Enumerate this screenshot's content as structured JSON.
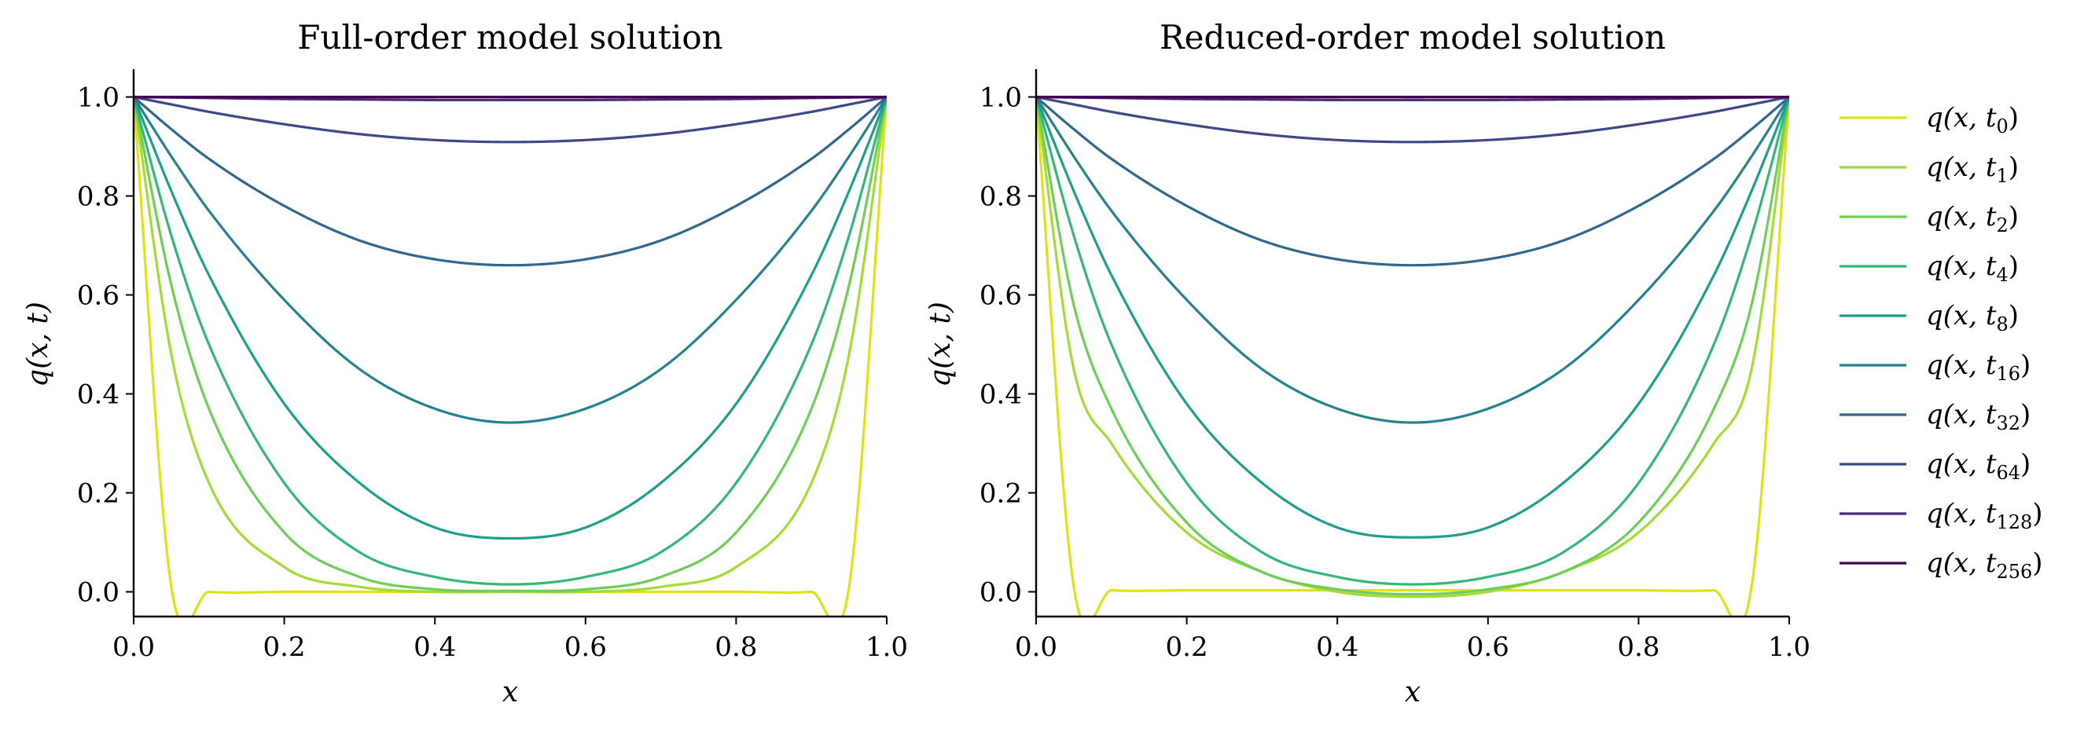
{
  "chart_data": [
    {
      "type": "line",
      "title": "Full-order model solution",
      "xlabel": "x",
      "ylabel": "q(x, t)",
      "xlim": [
        0.0,
        1.0
      ],
      "ylim": [
        -0.05,
        1.05
      ],
      "xticks": [
        "0.0",
        "0.2",
        "0.4",
        "0.6",
        "0.8",
        "1.0"
      ],
      "yticks": [
        "0.0",
        "0.2",
        "0.4",
        "0.6",
        "0.8",
        "1.0"
      ],
      "grid": false,
      "x": [
        0.0,
        0.05,
        0.1,
        0.2,
        0.3,
        0.4,
        0.5,
        0.6,
        0.7,
        0.8,
        0.9,
        0.95,
        1.0
      ],
      "series": [
        {
          "name": "q(x, t₀)",
          "values": [
            1.0,
            0.01,
            0.0,
            0.0,
            0.0,
            0.0,
            0.0,
            0.0,
            0.0,
            0.0,
            0.0,
            0.01,
            1.0
          ]
        },
        {
          "name": "q(x, t₁)",
          "values": [
            1.0,
            0.48,
            0.22,
            0.05,
            0.01,
            0.0,
            0.0,
            0.0,
            0.01,
            0.05,
            0.22,
            0.48,
            1.0
          ]
        },
        {
          "name": "q(x, t₂)",
          "values": [
            1.0,
            0.62,
            0.37,
            0.12,
            0.03,
            0.005,
            0.002,
            0.005,
            0.03,
            0.12,
            0.37,
            0.62,
            1.0
          ]
        },
        {
          "name": "q(x, t₄)",
          "values": [
            1.0,
            0.72,
            0.5,
            0.22,
            0.08,
            0.03,
            0.015,
            0.03,
            0.08,
            0.22,
            0.5,
            0.72,
            1.0
          ]
        },
        {
          "name": "q(x, t₈)",
          "values": [
            1.0,
            0.81,
            0.64,
            0.38,
            0.22,
            0.13,
            0.108,
            0.13,
            0.22,
            0.38,
            0.64,
            0.81,
            1.0
          ]
        },
        {
          "name": "q(x, t₁₆)",
          "values": [
            1.0,
            0.88,
            0.77,
            0.59,
            0.45,
            0.37,
            0.342,
            0.37,
            0.45,
            0.59,
            0.77,
            0.88,
            1.0
          ]
        },
        {
          "name": "q(x, t₃₂)",
          "values": [
            1.0,
            0.935,
            0.875,
            0.78,
            0.71,
            0.672,
            0.66,
            0.672,
            0.71,
            0.78,
            0.875,
            0.935,
            1.0
          ]
        },
        {
          "name": "q(x, t₆₄)",
          "values": [
            1.0,
            0.985,
            0.97,
            0.945,
            0.925,
            0.913,
            0.909,
            0.913,
            0.925,
            0.945,
            0.97,
            0.985,
            1.0
          ]
        },
        {
          "name": "q(x, t₁₂₈)",
          "values": [
            1.0,
            0.999,
            0.998,
            0.996,
            0.995,
            0.994,
            0.994,
            0.994,
            0.995,
            0.996,
            0.998,
            0.999,
            1.0
          ]
        },
        {
          "name": "q(x, t₂₅₆)",
          "values": [
            1.0,
            1.0,
            1.0,
            1.0,
            1.0,
            1.0,
            1.0,
            1.0,
            1.0,
            1.0,
            1.0,
            1.0,
            1.0
          ]
        }
      ]
    },
    {
      "type": "line",
      "title": "Reduced-order model solution",
      "xlabel": "x",
      "ylabel": "q(x, t)",
      "xlim": [
        0.0,
        1.0
      ],
      "ylim": [
        -0.05,
        1.05
      ],
      "xticks": [
        "0.0",
        "0.2",
        "0.4",
        "0.6",
        "0.8",
        "1.0"
      ],
      "yticks": [
        "0.0",
        "0.2",
        "0.4",
        "0.6",
        "0.8",
        "1.0"
      ],
      "grid": false,
      "x": [
        0.0,
        0.05,
        0.1,
        0.2,
        0.3,
        0.4,
        0.5,
        0.6,
        0.7,
        0.8,
        0.9,
        0.95,
        1.0
      ],
      "series": [
        {
          "name": "q(x, t₀)",
          "values": [
            1.0,
            0.01,
            0.003,
            0.003,
            0.003,
            0.003,
            0.003,
            0.003,
            0.003,
            0.003,
            0.003,
            0.01,
            1.0
          ]
        },
        {
          "name": "q(x, t₁)",
          "values": [
            1.0,
            0.45,
            0.3,
            0.12,
            0.04,
            0.0,
            -0.01,
            0.0,
            0.04,
            0.12,
            0.3,
            0.45,
            1.0
          ]
        },
        {
          "name": "q(x, t₂)",
          "values": [
            1.0,
            0.58,
            0.37,
            0.14,
            0.04,
            0.005,
            -0.005,
            0.005,
            0.04,
            0.14,
            0.37,
            0.58,
            1.0
          ]
        },
        {
          "name": "q(x, t₄)",
          "values": [
            1.0,
            0.72,
            0.5,
            0.22,
            0.08,
            0.03,
            0.015,
            0.03,
            0.08,
            0.22,
            0.5,
            0.72,
            1.0
          ]
        },
        {
          "name": "q(x, t₈)",
          "values": [
            1.0,
            0.81,
            0.64,
            0.38,
            0.22,
            0.13,
            0.11,
            0.13,
            0.22,
            0.38,
            0.64,
            0.81,
            1.0
          ]
        },
        {
          "name": "q(x, t₁₆)",
          "values": [
            1.0,
            0.88,
            0.77,
            0.59,
            0.45,
            0.37,
            0.342,
            0.37,
            0.45,
            0.59,
            0.77,
            0.88,
            1.0
          ]
        },
        {
          "name": "q(x, t₃₂)",
          "values": [
            1.0,
            0.935,
            0.875,
            0.78,
            0.71,
            0.672,
            0.66,
            0.672,
            0.71,
            0.78,
            0.875,
            0.935,
            1.0
          ]
        },
        {
          "name": "q(x, t₆₄)",
          "values": [
            1.0,
            0.985,
            0.97,
            0.945,
            0.925,
            0.913,
            0.909,
            0.913,
            0.925,
            0.945,
            0.97,
            0.985,
            1.0
          ]
        },
        {
          "name": "q(x, t₁₂₈)",
          "values": [
            1.0,
            0.999,
            0.998,
            0.996,
            0.995,
            0.994,
            0.994,
            0.994,
            0.995,
            0.996,
            0.998,
            0.999,
            1.0
          ]
        },
        {
          "name": "q(x, t₂₅₆)",
          "values": [
            1.0,
            1.0,
            1.0,
            1.0,
            1.0,
            1.0,
            1.0,
            1.0,
            1.0,
            1.0,
            1.0,
            1.0,
            1.0
          ]
        }
      ]
    }
  ],
  "legend": {
    "placement": "right",
    "entries": [
      {
        "base": "q(x, t",
        "sub": "0",
        "color": "#dde318"
      },
      {
        "base": "q(x, t",
        "sub": "1",
        "color": "#a5db36"
      },
      {
        "base": "q(x, t",
        "sub": "2",
        "color": "#6ece58"
      },
      {
        "base": "q(x, t",
        "sub": "4",
        "color": "#35b779"
      },
      {
        "base": "q(x, t",
        "sub": "8",
        "color": "#1f9e89"
      },
      {
        "base": "q(x, t",
        "sub": "16",
        "color": "#26828e"
      },
      {
        "base": "q(x, t",
        "sub": "32",
        "color": "#31688e"
      },
      {
        "base": "q(x, t",
        "sub": "64",
        "color": "#3e4989"
      },
      {
        "base": "q(x, t",
        "sub": "128",
        "color": "#482878"
      },
      {
        "base": "q(x, t",
        "sub": "256",
        "color": "#440154"
      }
    ]
  }
}
